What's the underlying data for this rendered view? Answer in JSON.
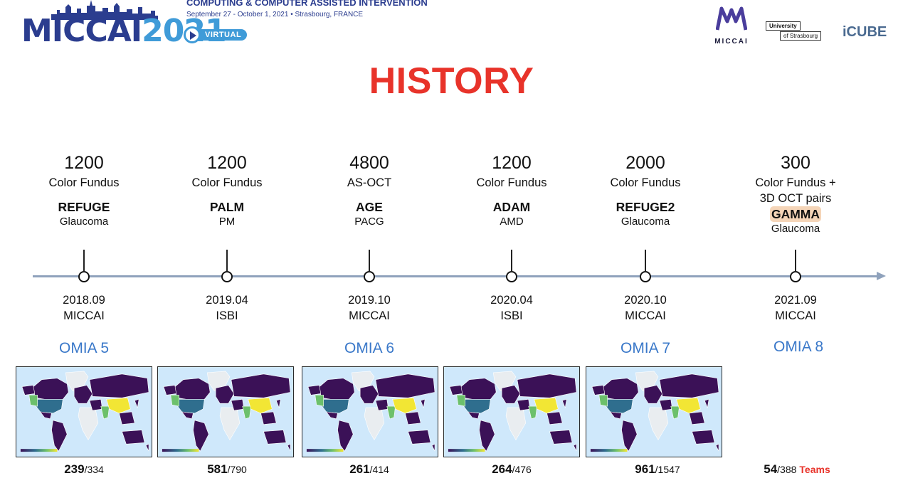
{
  "header": {
    "logo_word": "MICCAI",
    "logo_year": "2021",
    "virtual_label": "VIRTUAL",
    "conference_line": "COMPUTING & COMPUTER ASSISTED INTERVENTION",
    "dates_location": "September 27 - October 1, 2021 • Strasbourg, FRANCE",
    "partners": {
      "miccai": "MICCAI",
      "university_top": "University",
      "university_bottom": "of Strasbourg",
      "icube": "iCUBE"
    }
  },
  "title": "HISTORY",
  "timeline": [
    {
      "count": "1200",
      "modality": "Color Fundus",
      "modality2": "",
      "challenge": "REFUGE",
      "disease": "Glaucoma",
      "date": "2018.09",
      "venue": "MICCAI",
      "highlight": false
    },
    {
      "count": "1200",
      "modality": "Color Fundus",
      "modality2": "",
      "challenge": "PALM",
      "disease": "PM",
      "date": "2019.04",
      "venue": "ISBI",
      "highlight": false
    },
    {
      "count": "4800",
      "modality": "AS-OCT",
      "modality2": "",
      "challenge": "AGE",
      "disease": "PACG",
      "date": "2019.10",
      "venue": "MICCAI",
      "highlight": false
    },
    {
      "count": "1200",
      "modality": "Color Fundus",
      "modality2": "",
      "challenge": "ADAM",
      "disease": "AMD",
      "date": "2020.04",
      "venue": "ISBI",
      "highlight": false
    },
    {
      "count": "2000",
      "modality": "Color Fundus",
      "modality2": "",
      "challenge": "REFUGE2",
      "disease": "Glaucoma",
      "date": "2020.10",
      "venue": "MICCAI",
      "highlight": false
    },
    {
      "count": "300",
      "modality": "Color Fundus +",
      "modality2": "3D OCT pairs",
      "challenge": "GAMMA",
      "disease": "Glaucoma",
      "date": "2021.09",
      "venue": "MICCAI",
      "highlight": true
    }
  ],
  "omia": [
    "OMIA 5",
    "OMIA 6",
    "OMIA 7",
    "OMIA 8"
  ],
  "stats": [
    {
      "value": "239",
      "total": "/334"
    },
    {
      "value": "581",
      "total": "/790"
    },
    {
      "value": "261",
      "total": "/414"
    },
    {
      "value": "264",
      "total": "/476"
    },
    {
      "value": "961",
      "total": "/1547"
    },
    {
      "value": "54",
      "total": "/388",
      "suffix": "Teams"
    }
  ],
  "colors": {
    "title": "#e8332a",
    "omia": "#3a78c9",
    "axis": "#8fa2bc",
    "highlight": "#f5d5b8",
    "map_ocean": "#cfe8fb",
    "map_dark": "#3b1157",
    "map_teal": "#2f6e8e",
    "map_green": "#6cc06b",
    "map_yellow": "#f2e634"
  }
}
